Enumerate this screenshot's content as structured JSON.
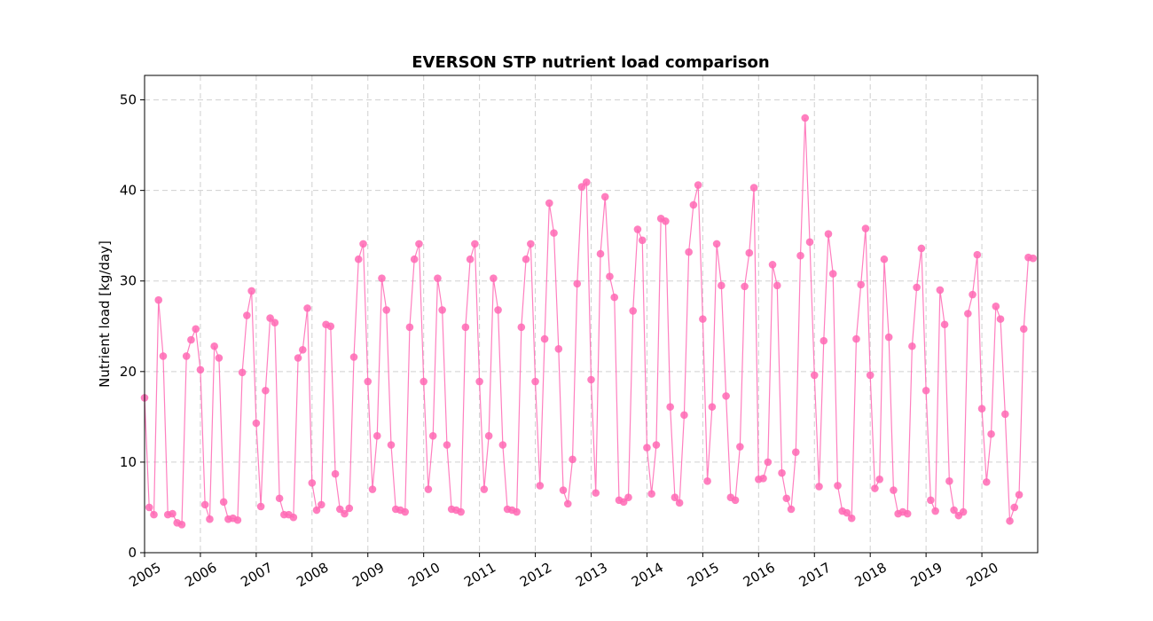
{
  "chart_data": {
    "type": "line",
    "title": "EVERSON STP nutrient load comparison",
    "xlabel": "",
    "ylabel": "Nutrient load [kg/day]",
    "ylim": [
      0,
      52.7
    ],
    "xlim": [
      2005.0,
      2021.0
    ],
    "yticks": [
      0,
      10,
      20,
      30,
      40,
      50
    ],
    "xticks": [
      "2005",
      "2006",
      "2007",
      "2008",
      "2009",
      "2010",
      "2011",
      "2012",
      "2013",
      "2014",
      "2015",
      "2016",
      "2017",
      "2018",
      "2019",
      "2020"
    ],
    "grid": true,
    "marker": "circle",
    "color": "#ff69b4",
    "series": [
      {
        "x": [
          2005.0,
          2005.083,
          2005.167,
          2005.25,
          2005.333,
          2005.417,
          2005.5,
          2005.583,
          2005.667,
          2005.75,
          2005.833,
          2005.917,
          2006.0,
          2006.083,
          2006.167,
          2006.25,
          2006.333,
          2006.417,
          2006.5,
          2006.583,
          2006.667,
          2006.75,
          2006.833,
          2006.917,
          2007.0,
          2007.083,
          2007.167,
          2007.25,
          2007.333,
          2007.417,
          2007.5,
          2007.583,
          2007.667,
          2007.75,
          2007.833,
          2007.917,
          2008.0,
          2008.083,
          2008.167,
          2008.25,
          2008.333,
          2008.417,
          2008.5,
          2008.583,
          2008.667,
          2008.75,
          2008.833,
          2008.917,
          2009.0,
          2009.083,
          2009.167,
          2009.25,
          2009.333,
          2009.417,
          2009.5,
          2009.583,
          2009.667,
          2009.75,
          2009.833,
          2009.917,
          2010.0,
          2010.083,
          2010.167,
          2010.25,
          2010.333,
          2010.417,
          2010.5,
          2010.583,
          2010.667,
          2010.75,
          2010.833,
          2010.917,
          2011.0,
          2011.083,
          2011.167,
          2011.25,
          2011.333,
          2011.417,
          2011.5,
          2011.583,
          2011.667,
          2011.75,
          2011.833,
          2011.917,
          2012.0,
          2012.083,
          2012.167,
          2012.25,
          2012.333,
          2012.417,
          2012.5,
          2012.583,
          2012.667,
          2012.75,
          2012.833,
          2012.917,
          2013.0,
          2013.083,
          2013.167,
          2013.25,
          2013.333,
          2013.417,
          2013.5,
          2013.583,
          2013.667,
          2013.75,
          2013.833,
          2013.917,
          2014.0,
          2014.083,
          2014.167,
          2014.25,
          2014.333,
          2014.417,
          2014.5,
          2014.583,
          2014.667,
          2014.75,
          2014.833,
          2014.917,
          2015.0,
          2015.083,
          2015.167,
          2015.25,
          2015.333,
          2015.417,
          2015.5,
          2015.583,
          2015.667,
          2015.75,
          2015.833,
          2015.917,
          2016.0,
          2016.083,
          2016.167,
          2016.25,
          2016.333,
          2016.417,
          2016.5,
          2016.583,
          2016.667,
          2016.75,
          2016.833,
          2016.917,
          2017.0,
          2017.083,
          2017.167,
          2017.25,
          2017.333,
          2017.417,
          2017.5,
          2017.583,
          2017.667,
          2017.75,
          2017.833,
          2017.917,
          2018.0,
          2018.083,
          2018.167,
          2018.25,
          2018.333,
          2018.417,
          2018.5,
          2018.583,
          2018.667,
          2018.75,
          2018.833,
          2018.917,
          2019.0,
          2019.083,
          2019.167,
          2019.25,
          2019.333,
          2019.417,
          2019.5,
          2019.583,
          2019.667,
          2019.75,
          2019.833,
          2019.917,
          2020.0,
          2020.083,
          2020.167,
          2020.25,
          2020.333,
          2020.417,
          2020.5,
          2020.583,
          2020.667,
          2020.75,
          2020.833,
          2020.917
        ],
        "y": [
          17.1,
          5.0,
          4.2,
          27.9,
          21.7,
          4.2,
          4.3,
          3.3,
          3.1,
          21.7,
          23.5,
          24.7,
          20.2,
          5.3,
          3.7,
          22.8,
          21.5,
          5.6,
          3.7,
          3.8,
          3.6,
          19.9,
          26.2,
          28.9,
          14.3,
          5.1,
          17.9,
          25.9,
          25.4,
          6.0,
          4.2,
          4.2,
          3.9,
          21.5,
          22.4,
          27.0,
          7.7,
          4.7,
          5.3,
          25.2,
          25.0,
          8.7,
          4.8,
          4.3,
          4.9,
          21.6,
          32.4,
          34.1,
          18.9,
          7.0,
          12.9,
          30.3,
          26.8,
          11.9,
          4.8,
          4.7,
          4.5,
          24.9,
          32.4,
          34.1,
          18.9,
          7.0,
          12.9,
          30.3,
          26.8,
          11.9,
          4.8,
          4.7,
          4.5,
          24.9,
          32.4,
          34.1,
          18.9,
          7.0,
          12.9,
          30.3,
          26.8,
          11.9,
          4.8,
          4.7,
          4.5,
          24.9,
          32.4,
          34.1,
          18.9,
          7.4,
          23.6,
          38.6,
          35.3,
          22.5,
          6.9,
          5.4,
          10.3,
          29.7,
          40.4,
          40.9,
          19.1,
          6.6,
          33.0,
          39.3,
          30.5,
          28.2,
          5.8,
          5.6,
          6.1,
          26.7,
          35.7,
          34.5,
          11.6,
          6.5,
          11.9,
          36.9,
          36.6,
          16.1,
          6.1,
          5.5,
          15.2,
          33.2,
          38.4,
          40.6,
          25.8,
          7.9,
          16.1,
          34.1,
          29.5,
          17.3,
          6.1,
          5.8,
          11.7,
          29.4,
          33.1,
          40.3,
          8.1,
          8.2,
          10.0,
          31.8,
          29.5,
          8.8,
          6.0,
          4.8,
          11.1,
          32.8,
          48.0,
          34.3,
          19.6,
          7.3,
          23.4,
          35.2,
          30.8,
          7.4,
          4.6,
          4.4,
          3.8,
          23.6,
          29.6,
          35.8,
          19.6,
          7.1,
          8.1,
          32.4,
          23.8,
          6.9,
          4.3,
          4.5,
          4.3,
          22.8,
          29.3,
          33.6,
          17.9,
          5.8,
          4.6,
          29.0,
          25.2,
          7.9,
          4.7,
          4.1,
          4.5,
          26.4,
          28.5,
          32.9,
          15.9,
          7.8,
          13.1,
          27.2,
          25.8,
          15.3,
          3.5,
          5.0,
          6.4,
          24.7,
          32.6,
          32.5
        ]
      }
    ]
  }
}
